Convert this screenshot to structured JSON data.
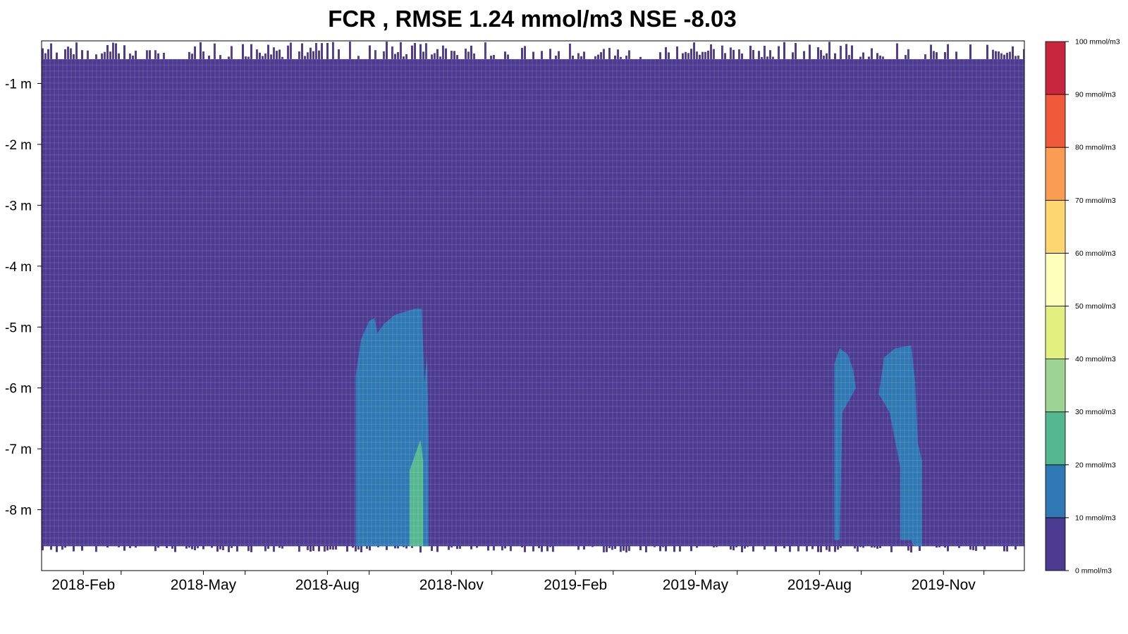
{
  "chart_data": {
    "type": "heatmap",
    "title": "FCR , RMSE 1.24 mmol/m3 NSE -8.03",
    "xlabel": "",
    "ylabel": "",
    "x_range": [
      "2018-01-01",
      "2019-12-31"
    ],
    "y_range": [
      -0.3,
      -9.0
    ],
    "x_ticks": [
      {
        "date": "2018-02-01",
        "label": "2018-Feb"
      },
      {
        "date": "2018-03-01",
        "label": ""
      },
      {
        "date": "2018-05-01",
        "label": "2018-May"
      },
      {
        "date": "2018-06-01",
        "label": ""
      },
      {
        "date": "2018-08-01",
        "label": "2018-Aug"
      },
      {
        "date": "2018-09-01",
        "label": ""
      },
      {
        "date": "2018-11-01",
        "label": "2018-Nov"
      },
      {
        "date": "2018-12-01",
        "label": ""
      },
      {
        "date": "2019-02-01",
        "label": "2019-Feb"
      },
      {
        "date": "2019-03-01",
        "label": ""
      },
      {
        "date": "2019-05-01",
        "label": "2019-May"
      },
      {
        "date": "2019-06-01",
        "label": ""
      },
      {
        "date": "2019-08-01",
        "label": "2019-Aug"
      },
      {
        "date": "2019-09-01",
        "label": ""
      },
      {
        "date": "2019-11-01",
        "label": "2019-Nov"
      },
      {
        "date": "2019-12-01",
        "label": ""
      }
    ],
    "y_ticks": [
      {
        "value": -1,
        "label": "-1 m"
      },
      {
        "value": -2,
        "label": "-2 m"
      },
      {
        "value": -3,
        "label": "-3 m"
      },
      {
        "value": -4,
        "label": "-4 m"
      },
      {
        "value": -5,
        "label": "-5 m"
      },
      {
        "value": -6,
        "label": "-6 m"
      },
      {
        "value": -7,
        "label": "-7 m"
      },
      {
        "value": -8,
        "label": "-8 m"
      }
    ],
    "water_column": {
      "surface_depth": -0.6,
      "bottom_depth": -8.6
    },
    "background_class": "0-10",
    "regions": [
      {
        "class": "10-20",
        "points": [
          [
            "2018-08-22",
            -8.6
          ],
          [
            "2018-08-22",
            -5.8
          ],
          [
            "2018-08-26",
            -5.2
          ],
          [
            "2018-09-01",
            -4.9
          ],
          [
            "2018-09-05",
            -4.85
          ],
          [
            "2018-09-07",
            -5.1
          ],
          [
            "2018-09-12",
            -4.95
          ],
          [
            "2018-09-20",
            -4.8
          ],
          [
            "2018-10-05",
            -4.7
          ],
          [
            "2018-10-10",
            -4.7
          ],
          [
            "2018-10-12",
            -5.9
          ],
          [
            "2018-10-14",
            -5.5
          ],
          [
            "2018-10-15",
            -6.7
          ],
          [
            "2018-10-15",
            -8.6
          ]
        ]
      },
      {
        "class": "20-30",
        "points": [
          [
            "2018-10-01",
            -8.6
          ],
          [
            "2018-10-01",
            -7.35
          ],
          [
            "2018-10-05",
            -7.1
          ],
          [
            "2018-10-09",
            -6.85
          ],
          [
            "2018-10-11",
            -7.2
          ],
          [
            "2018-10-11",
            -8.6
          ]
        ]
      },
      {
        "class": "10-20",
        "points": [
          [
            "2019-08-12",
            -8.5
          ],
          [
            "2019-08-12",
            -5.6
          ],
          [
            "2019-08-16",
            -5.35
          ],
          [
            "2019-08-22",
            -5.45
          ],
          [
            "2019-08-26",
            -5.7
          ],
          [
            "2019-08-28",
            -6.0
          ],
          [
            "2019-08-18",
            -6.4
          ],
          [
            "2019-08-16",
            -8.5
          ]
        ]
      },
      {
        "class": "10-20",
        "points": [
          [
            "2019-09-14",
            -6.1
          ],
          [
            "2019-09-18",
            -5.5
          ],
          [
            "2019-09-26",
            -5.35
          ],
          [
            "2019-10-08",
            -5.3
          ],
          [
            "2019-10-11",
            -5.9
          ],
          [
            "2019-10-13",
            -6.9
          ],
          [
            "2019-10-16",
            -7.2
          ],
          [
            "2019-10-16",
            -8.6
          ],
          [
            "2019-10-10",
            -8.6
          ],
          [
            "2019-10-08",
            -8.5
          ],
          [
            "2019-09-30",
            -8.5
          ],
          [
            "2019-09-30",
            -7.3
          ],
          [
            "2019-09-22",
            -6.4
          ]
        ]
      }
    ],
    "colorbar": {
      "classes": [
        {
          "id": "0-10",
          "color": "#4d3b92",
          "label": "0 mmol/m3"
        },
        {
          "id": "10-20",
          "color": "#2f78b4",
          "label": "10 mmol/m3"
        },
        {
          "id": "20-30",
          "color": "#55b78f",
          "label": "20 mmol/m3"
        },
        {
          "id": "30-40",
          "color": "#9dd494",
          "label": "30 mmol/m3"
        },
        {
          "id": "40-50",
          "color": "#e2f07f",
          "label": "40 mmol/m3"
        },
        {
          "id": "50-60",
          "color": "#ffffbd",
          "label": "50 mmol/m3"
        },
        {
          "id": "60-70",
          "color": "#fcd671",
          "label": "60 mmol/m3"
        },
        {
          "id": "70-80",
          "color": "#fa9d52",
          "label": "70 mmol/m3"
        },
        {
          "id": "80-90",
          "color": "#ee5a3a",
          "label": "80 mmol/m3"
        },
        {
          "id": "90-100",
          "color": "#c8263e",
          "label": "90 mmol/m3"
        }
      ],
      "top_label": "100 mmol/m3"
    }
  }
}
